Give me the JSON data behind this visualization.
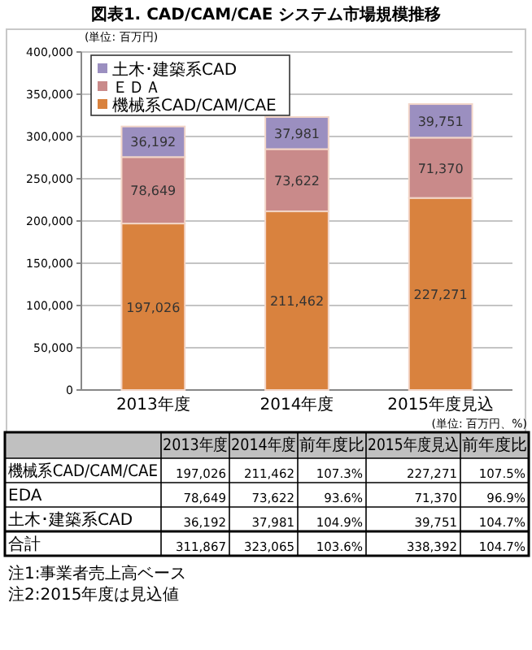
{
  "chart_data": [
    {
      "type": "bar",
      "title": "図表1. CAD/CAM/CAE システム市場規模推移",
      "ylabel": "(単位: 百万円)",
      "categories": [
        "2013年度",
        "2014年度",
        "2015年度見込"
      ],
      "stacked": true,
      "series": [
        {
          "name": "機械系CAD/CAM/CAE",
          "color": "#d9823e",
          "values": [
            197026,
            211462,
            227271
          ],
          "value_labels": [
            "197,026",
            "211,462",
            "227,271"
          ]
        },
        {
          "name": "ＥＤＡ",
          "color": "#c98a8a",
          "values": [
            78649,
            73622,
            71370
          ],
          "value_labels": [
            "78,649",
            "73,622",
            "71,370"
          ]
        },
        {
          "name": "土木･建築系CAD",
          "color": "#9b8fc0",
          "values": [
            36192,
            37981,
            39751
          ],
          "value_labels": [
            "36,192",
            "37,981",
            "39,751"
          ]
        }
      ],
      "ylim": [
        0,
        400000
      ],
      "yticks": [
        {
          "value": 0,
          "label": "0"
        },
        {
          "value": 50000,
          "label": "50,000"
        },
        {
          "value": 100000,
          "label": "100,000"
        },
        {
          "value": 150000,
          "label": "150,000"
        },
        {
          "value": 200000,
          "label": "200,000"
        },
        {
          "value": 250000,
          "label": "250,000"
        },
        {
          "value": 300000,
          "label": "300,000"
        },
        {
          "value": 350000,
          "label": "350,000"
        },
        {
          "value": 400000,
          "label": "400,000"
        }
      ],
      "grid": "y",
      "legend": "top left"
    },
    {
      "type": "other",
      "categories": [
        "2013年度",
        "2014年度",
        "前年度比",
        "2015年度見込",
        "前年度比"
      ],
      "y_categories": [
        "機械系CAD/CAM/CAE",
        "EDA",
        "土木･建築系CAD",
        "合計"
      ],
      "cell_labels": [
        [
          "197,026",
          "211,462",
          "107.3%",
          "227,271",
          "107.5%"
        ],
        [
          "78,649",
          "73,622",
          "93.6%",
          "71,370",
          "96.9%"
        ],
        [
          "36,192",
          "37,981",
          "104.9%",
          "39,751",
          "104.7%"
        ],
        [
          "311,867",
          "323,065",
          "103.6%",
          "338,392",
          "104.7%"
        ]
      ],
      "annotations": [
        "(単位: 百万円、%)",
        "注1:事業者売上高ベース",
        "注2:2015年度は見込値"
      ]
    }
  ]
}
